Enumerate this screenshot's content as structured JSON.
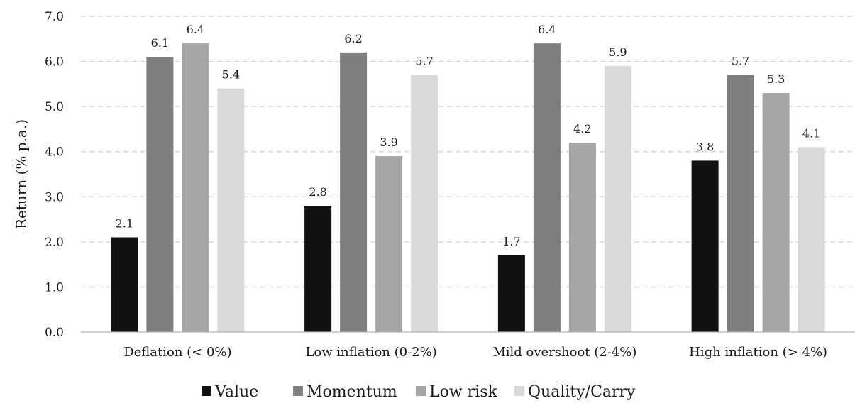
{
  "chart_data": {
    "type": "bar",
    "title": "",
    "xlabel": "",
    "ylabel": "Return (% p.a.)",
    "ylim": [
      0,
      7
    ],
    "yticks": [
      "0.0",
      "1.0",
      "2.0",
      "3.0",
      "4.0",
      "5.0",
      "6.0",
      "7.0"
    ],
    "grid": true,
    "legend_position": "bottom",
    "categories": [
      "Deflation (< 0%)",
      "Low inflation (0-2%)",
      "Mild overshoot (2-4%)",
      "High inflation (> 4%)"
    ],
    "series": [
      {
        "name": "Value",
        "color": "#111111",
        "values": [
          2.1,
          2.8,
          1.7,
          3.8
        ],
        "labels": [
          "2.1",
          "2.8",
          "1.7",
          "3.8"
        ]
      },
      {
        "name": "Momentum",
        "color": "#7f7f7f",
        "values": [
          6.1,
          6.2,
          6.4,
          5.7
        ],
        "labels": [
          "6.1",
          "6.2",
          "6.4",
          "5.7"
        ]
      },
      {
        "name": "Low risk",
        "color": "#a6a6a6",
        "values": [
          6.4,
          3.9,
          4.2,
          5.3
        ],
        "labels": [
          "6.4",
          "3.9",
          "4.2",
          "5.3"
        ]
      },
      {
        "name": "Quality/Carry",
        "color": "#d9d9d9",
        "values": [
          5.4,
          5.7,
          5.9,
          4.1
        ],
        "labels": [
          "5.4",
          "5.7",
          "5.9",
          "4.1"
        ]
      }
    ]
  }
}
